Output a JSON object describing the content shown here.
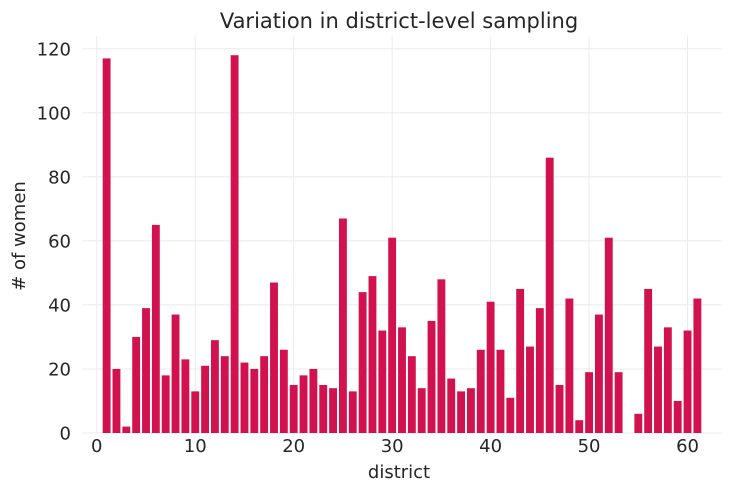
{
  "chart_data": {
    "type": "bar",
    "title": "Variation in district-level sampling",
    "xlabel": "district",
    "ylabel": "# of women",
    "xlim": [
      -1.5,
      63.5
    ],
    "ylim": [
      0,
      124
    ],
    "xticks": [
      0,
      10,
      20,
      30,
      40,
      50,
      60
    ],
    "yticks": [
      0,
      20,
      40,
      60,
      80,
      100,
      120
    ],
    "grid": true,
    "bar_color": "#d1124f",
    "x": [
      1,
      2,
      3,
      4,
      5,
      6,
      7,
      8,
      9,
      10,
      11,
      12,
      13,
      14,
      15,
      16,
      17,
      18,
      19,
      20,
      21,
      22,
      23,
      24,
      25,
      26,
      27,
      28,
      29,
      30,
      31,
      32,
      33,
      34,
      35,
      36,
      37,
      38,
      39,
      40,
      41,
      42,
      43,
      44,
      45,
      46,
      47,
      48,
      49,
      50,
      51,
      52,
      53,
      54,
      55,
      56,
      57,
      58,
      59,
      60,
      61
    ],
    "values": [
      117,
      20,
      2,
      30,
      39,
      65,
      18,
      37,
      23,
      13,
      21,
      29,
      24,
      118,
      22,
      20,
      24,
      47,
      26,
      15,
      18,
      20,
      15,
      14,
      67,
      13,
      44,
      49,
      32,
      61,
      33,
      24,
      14,
      35,
      48,
      17,
      13,
      14,
      26,
      41,
      26,
      11,
      45,
      27,
      39,
      86,
      15,
      42,
      4,
      19,
      37,
      61,
      19,
      0,
      6,
      45,
      27,
      33,
      10,
      32,
      42
    ]
  }
}
